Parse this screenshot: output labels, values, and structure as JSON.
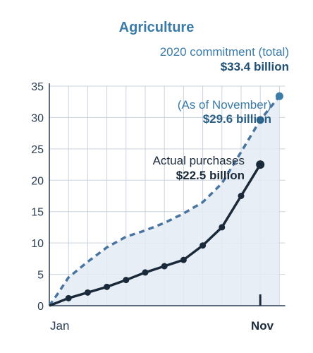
{
  "title": "Agriculture",
  "commitment": {
    "label": "2020 commitment (total)",
    "value": "$33.4 billion"
  },
  "november": {
    "label": "(As of November)",
    "value": "$29.6 billion"
  },
  "actual": {
    "label": "Actual purchases",
    "value": "$22.5 billion"
  },
  "x_labels": {
    "start": "Jan",
    "end": "Nov"
  },
  "colors": {
    "accent": "#3b7ba8",
    "actual_line": "#1b2a3a",
    "commitment_line": "#4a74a0",
    "fill": "#e4ebf3",
    "grid": "#c9d3de"
  },
  "chart_data": {
    "type": "line",
    "ylim": [
      0,
      35
    ],
    "yticks": [
      0,
      5,
      10,
      15,
      20,
      25,
      30,
      35
    ],
    "x_tick_labels": [
      "Jan",
      "Nov"
    ],
    "xlabel": "",
    "ylabel": "",
    "grid": true,
    "series": [
      {
        "name": "Actual purchases",
        "x": [
          0,
          1,
          2,
          3,
          4,
          5,
          6,
          7,
          8,
          9,
          10,
          11
        ],
        "values": [
          0,
          1.2,
          2.1,
          3.0,
          4.1,
          5.3,
          6.3,
          7.3,
          9.6,
          12.5,
          17.5,
          22.5
        ]
      },
      {
        "name": "2020 commitment (total)",
        "x": [
          0,
          0.5,
          1,
          2,
          3,
          4,
          5,
          6,
          7,
          8,
          9,
          10,
          11,
          12
        ],
        "values": [
          0,
          2.2,
          4.5,
          7.0,
          9.3,
          11.0,
          12.0,
          13.2,
          14.7,
          16.5,
          19.5,
          24.5,
          29.6,
          33.4
        ]
      }
    ]
  }
}
